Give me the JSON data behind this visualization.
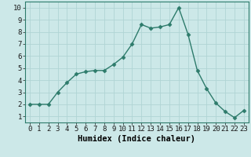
{
  "x": [
    0,
    1,
    2,
    3,
    4,
    5,
    6,
    7,
    8,
    9,
    10,
    11,
    12,
    13,
    14,
    15,
    16,
    17,
    18,
    19,
    20,
    21,
    22,
    23
  ],
  "y": [
    2,
    2,
    2,
    3,
    3.8,
    4.5,
    4.7,
    4.8,
    4.8,
    5.3,
    5.9,
    7.0,
    8.6,
    8.3,
    8.4,
    8.6,
    10.0,
    7.8,
    4.8,
    3.3,
    2.1,
    1.4,
    0.9,
    1.5
  ],
  "line_color": "#2d7b6b",
  "marker": "D",
  "marker_size": 2.5,
  "bg_color": "#cce8e8",
  "grid_color": "#b0d4d4",
  "xlabel": "Humidex (Indice chaleur)",
  "xlim": [
    -0.5,
    23.5
  ],
  "ylim": [
    0.5,
    10.5
  ],
  "xticks": [
    0,
    1,
    2,
    3,
    4,
    5,
    6,
    7,
    8,
    9,
    10,
    11,
    12,
    13,
    14,
    15,
    16,
    17,
    18,
    19,
    20,
    21,
    22,
    23
  ],
  "yticks": [
    1,
    2,
    3,
    4,
    5,
    6,
    7,
    8,
    9,
    10
  ],
  "xlabel_fontsize": 7.5,
  "tick_fontsize": 6.5,
  "line_width": 1.0
}
